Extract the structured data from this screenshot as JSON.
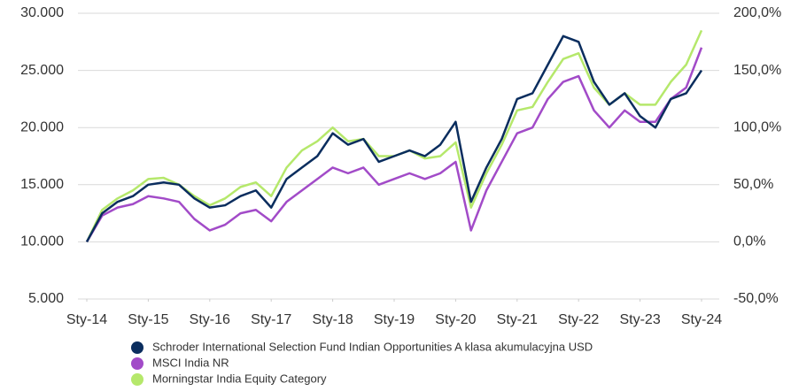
{
  "chart_data": {
    "type": "line",
    "x": [
      2014,
      2014.25,
      2014.5,
      2014.75,
      2015,
      2015.25,
      2015.5,
      2015.75,
      2016,
      2016.25,
      2016.5,
      2016.75,
      2017,
      2017.25,
      2017.5,
      2017.75,
      2018,
      2018.25,
      2018.5,
      2018.75,
      2019,
      2019.25,
      2019.5,
      2019.75,
      2020,
      2020.25,
      2020.5,
      2020.75,
      2021,
      2021.25,
      2021.5,
      2021.75,
      2022,
      2022.25,
      2022.5,
      2022.75,
      2023,
      2023.25,
      2023.5,
      2023.75,
      2024
    ],
    "series": [
      {
        "name": "Schroder International Selection Fund Indian Opportunities A klasa akumulacyjna USD",
        "color": "#0a2d5e",
        "values": [
          10000,
          12500,
          13500,
          14000,
          15000,
          15200,
          15000,
          13800,
          13000,
          13200,
          14000,
          14500,
          13000,
          15500,
          16500,
          17500,
          19500,
          18500,
          19000,
          17000,
          17500,
          18000,
          17500,
          18500,
          20500,
          13500,
          16500,
          19000,
          22500,
          23000,
          25500,
          28000,
          27500,
          24000,
          22000,
          23000,
          21000,
          20000,
          22500,
          23000,
          25000
        ]
      },
      {
        "name": "MSCI India NR",
        "color": "#a24bc8",
        "values": [
          10000,
          12300,
          13000,
          13300,
          14000,
          13800,
          13500,
          12000,
          11000,
          11500,
          12500,
          12800,
          11800,
          13500,
          14500,
          15500,
          16500,
          16000,
          16500,
          15000,
          15500,
          16000,
          15500,
          16000,
          17000,
          11000,
          14500,
          17000,
          19500,
          20000,
          22500,
          24000,
          24500,
          21500,
          20000,
          21500,
          20500,
          20500,
          22500,
          23500,
          27000
        ]
      },
      {
        "name": "Morningstar India Equity Category",
        "color": "#b5e86b",
        "values": [
          10000,
          12800,
          13800,
          14500,
          15500,
          15600,
          15000,
          14000,
          13200,
          13800,
          14800,
          15200,
          14000,
          16500,
          18000,
          18800,
          20000,
          18800,
          19000,
          17500,
          17500,
          18000,
          17300,
          17500,
          18700,
          13000,
          16000,
          18500,
          21500,
          21800,
          24000,
          26000,
          26500,
          23500,
          22000,
          23000,
          22000,
          22000,
          24000,
          25500,
          28500
        ]
      }
    ],
    "xlim": [
      2014,
      2024
    ],
    "xticks": [
      {
        "value": 2014,
        "label": "Sty-14"
      },
      {
        "value": 2015,
        "label": "Sty-15"
      },
      {
        "value": 2016,
        "label": "Sty-16"
      },
      {
        "value": 2017,
        "label": "Sty-17"
      },
      {
        "value": 2018,
        "label": "Sty-18"
      },
      {
        "value": 2019,
        "label": "Sty-19"
      },
      {
        "value": 2020,
        "label": "Sty-20"
      },
      {
        "value": 2021,
        "label": "Sty-21"
      },
      {
        "value": 2022,
        "label": "Sty-22"
      },
      {
        "value": 2023,
        "label": "Sty-23"
      },
      {
        "value": 2024,
        "label": "Sty-24"
      }
    ],
    "ylim": [
      5000,
      30000
    ],
    "yticks": [
      {
        "value": 5000,
        "label": "5.000"
      },
      {
        "value": 10000,
        "label": "10.000"
      },
      {
        "value": 15000,
        "label": "15.000"
      },
      {
        "value": 20000,
        "label": "20.000"
      },
      {
        "value": 25000,
        "label": "25.000"
      },
      {
        "value": 30000,
        "label": "30.000"
      }
    ],
    "y2lim": [
      -50,
      200
    ],
    "y2ticks": [
      {
        "value": -50,
        "label": "-50,0%"
      },
      {
        "value": 0,
        "label": "0,0%"
      },
      {
        "value": 50,
        "label": "50,0%"
      },
      {
        "value": 100,
        "label": "100,0%"
      },
      {
        "value": 150,
        "label": "150,0%"
      },
      {
        "value": 200,
        "label": "200,0%"
      }
    ],
    "grid": true
  }
}
